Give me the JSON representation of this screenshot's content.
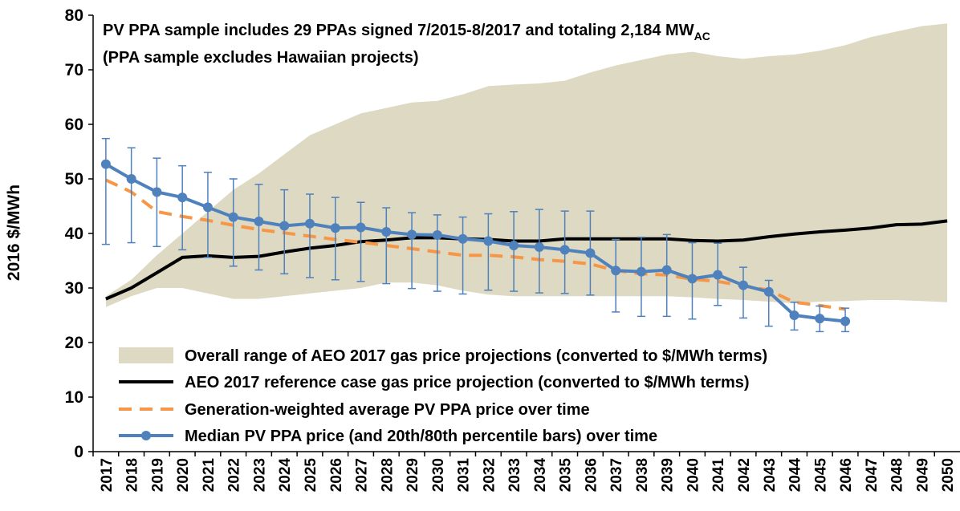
{
  "chart_data": {
    "type": "line",
    "annotation": {
      "text": "PV PPA sample includes 29 PPAs signed 7/2015-8/2017 and totaling 2,184 MW",
      "subscript": "AC"
    },
    "annotation_line2": "(PPA sample excludes Hawaiian projects)",
    "y_label": "2016 $/MWh",
    "categories": [
      "2017",
      "2018",
      "2019",
      "2020",
      "2021",
      "2022",
      "2023",
      "2024",
      "2025",
      "2026",
      "2027",
      "2028",
      "2029",
      "2030",
      "2031",
      "2032",
      "2033",
      "2034",
      "2035",
      "2036",
      "2037",
      "2038",
      "2039",
      "2040",
      "2041",
      "2042",
      "2043",
      "2044",
      "2045",
      "2046",
      "2047",
      "2048",
      "2049",
      "2050"
    ],
    "ylim": [
      0,
      80
    ],
    "yticks": [
      0,
      10,
      20,
      30,
      40,
      50,
      60,
      70,
      80
    ],
    "series": [
      {
        "name": "Overall range of AEO 2017 gas price projections (converted to $/MWh terms)",
        "type": "range",
        "color": "#ddd9c3",
        "lower": [
          26.5,
          28.5,
          30,
          30,
          29,
          28,
          28,
          28.5,
          29,
          29.5,
          30,
          31,
          31,
          30.5,
          29.5,
          28.8,
          28.5,
          28.5,
          28.5,
          28.5,
          28.5,
          28.5,
          28.5,
          28.3,
          28,
          27.8,
          27.5,
          27.2,
          27.5,
          27.6,
          27.8,
          27.8,
          27.6,
          27.4
        ],
        "upper": [
          28.5,
          31.5,
          36,
          40,
          44,
          48,
          51,
          54.5,
          58,
          60,
          62,
          63,
          64,
          64.3,
          65.5,
          67,
          67.3,
          67.5,
          68,
          69.5,
          70.8,
          71.8,
          72.8,
          73.3,
          72.5,
          72,
          72.5,
          72.8,
          73.5,
          74.5,
          76,
          77,
          78,
          78.5
        ]
      },
      {
        "name": "AEO 2017 reference case gas price projection (converted to $/MWh terms)",
        "type": "solid",
        "color": "#000000",
        "values": [
          28,
          30,
          32.8,
          35.6,
          35.9,
          35.6,
          35.8,
          36.6,
          37.3,
          37.8,
          38.5,
          38.8,
          39.2,
          39.2,
          39,
          38.9,
          38.6,
          38.6,
          39,
          39,
          39,
          39,
          39,
          38.7,
          38.6,
          38.8,
          39.4,
          39.9,
          40.3,
          40.6,
          41,
          41.6,
          41.7,
          42.3
        ]
      },
      {
        "name": "Generation-weighted average PV PPA price over time",
        "type": "dashed",
        "color": "#f79646",
        "values": [
          49.8,
          47.6,
          44,
          43.1,
          42.4,
          41.5,
          40.7,
          40.1,
          39.5,
          38.9,
          38.4,
          37.8,
          37.2,
          36.6,
          36,
          36,
          35.7,
          35.2,
          34.9,
          34.4,
          33.2,
          32.6,
          32.4,
          31.6,
          31.2,
          30.4,
          29.6,
          27.4,
          26.8,
          26.1,
          null,
          null,
          null,
          null
        ]
      },
      {
        "name": "Median PV PPA price (and 20th/80th percentile bars) over time",
        "type": "errorline",
        "color": "#4f81bd",
        "values": [
          52.7,
          50,
          47.6,
          46.6,
          44.8,
          43,
          42.2,
          41.4,
          41.8,
          41,
          41.1,
          40.3,
          39.8,
          39.7,
          39,
          38.6,
          37.8,
          37.5,
          37,
          36.4,
          33.2,
          33,
          33.3,
          31.7,
          32.4,
          30.5,
          29.3,
          25,
          24.4,
          23.9,
          null,
          null,
          null,
          null
        ],
        "low": [
          38,
          38.3,
          37.6,
          37,
          35.6,
          34,
          33.3,
          32.6,
          31.9,
          31.5,
          31.2,
          30.8,
          29.9,
          29.4,
          28.9,
          29.6,
          29.4,
          29.1,
          29,
          28.7,
          25.6,
          24.8,
          24.8,
          24.3,
          26.8,
          24.5,
          23,
          22.3,
          22,
          22,
          null,
          null,
          null,
          null
        ],
        "high": [
          57.4,
          55.7,
          53.8,
          52.4,
          51.2,
          50,
          49,
          48,
          47.2,
          46.6,
          45.7,
          44.7,
          43.8,
          43.4,
          43,
          43.6,
          44,
          44.4,
          44.1,
          44.1,
          38.9,
          39.3,
          39.8,
          38.3,
          38.2,
          33.8,
          31.4,
          27.4,
          26.7,
          26.3,
          null,
          null,
          null,
          null
        ]
      }
    ]
  }
}
